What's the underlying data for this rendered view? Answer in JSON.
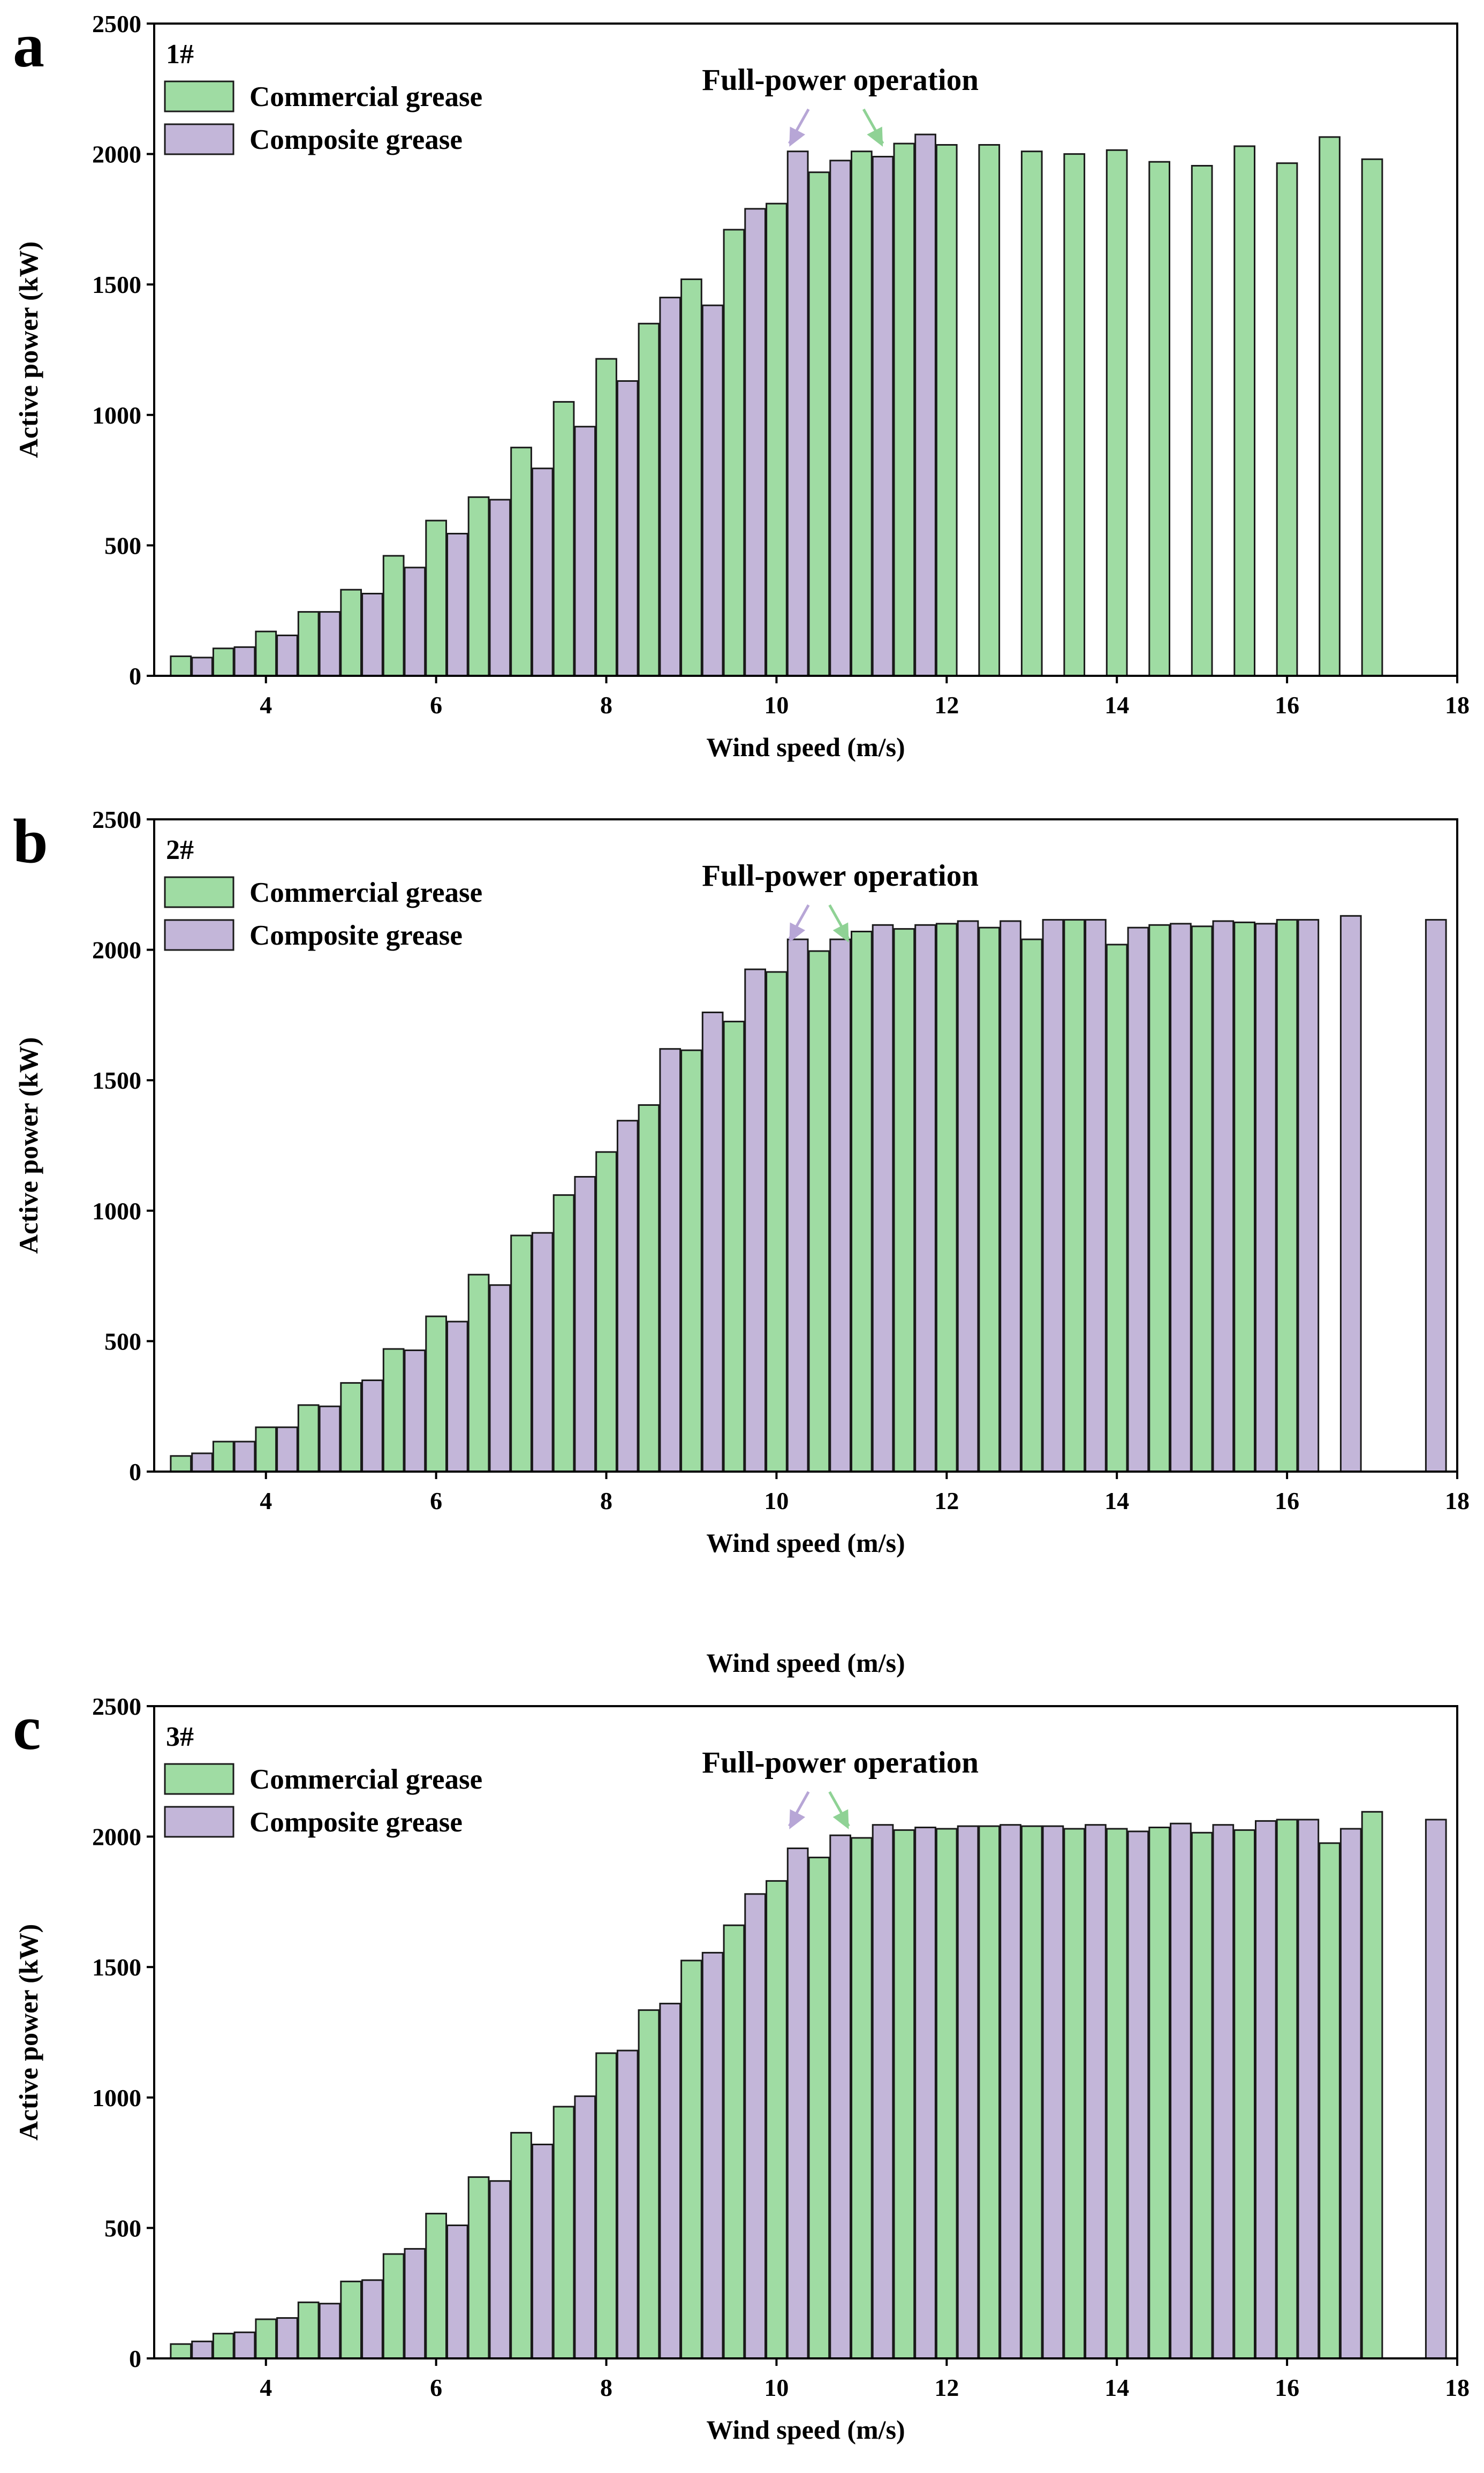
{
  "colors": {
    "commercial": "#9fdca3",
    "composite": "#c3b6d9",
    "arrow_commercial": "#8fd295",
    "arrow_composite": "#b7a6d6",
    "stroke": "#1a1a1a"
  },
  "stray_label": "Wind speed (m/s)",
  "chart_data": [
    {
      "type": "bar",
      "panel": "a",
      "turbine": "1#",
      "xlabel": "Wind speed (m/s)",
      "ylabel": "Active power (kW)",
      "xlim": [
        2.8,
        18
      ],
      "ylim": [
        0,
        2500
      ],
      "xticks": [
        4,
        6,
        8,
        10,
        12,
        14,
        16,
        18
      ],
      "yticks": [
        0,
        500,
        1000,
        1500,
        2000,
        2500
      ],
      "annotation": "Full-power operation",
      "arrows": {
        "commercial_x": 11.25,
        "composite_x": 10.15
      },
      "legend": [
        "Commercial grease",
        "Composite grease"
      ],
      "series": [
        {
          "name": "Commercial grease",
          "x": [
            3.0,
            3.5,
            4.0,
            4.5,
            5.0,
            5.5,
            6.0,
            6.5,
            7.0,
            7.5,
            8.0,
            8.5,
            9.0,
            9.5,
            10.0,
            10.5,
            11.0,
            11.5,
            12.0,
            12.5,
            13.0,
            13.5,
            14.0,
            14.5,
            15.0,
            15.5,
            16.0,
            16.5,
            17.0
          ],
          "values": [
            75,
            105,
            170,
            245,
            330,
            460,
            595,
            685,
            875,
            1050,
            1215,
            1350,
            1520,
            1710,
            1810,
            1930,
            2010,
            2040,
            2035,
            2035,
            2010,
            2000,
            2015,
            1970,
            1955,
            2030,
            1965,
            2065,
            1980
          ]
        },
        {
          "name": "Composite grease",
          "x": [
            3.25,
            3.75,
            4.25,
            4.75,
            5.25,
            5.75,
            6.25,
            6.75,
            7.25,
            7.75,
            8.25,
            8.75,
            9.25,
            9.75,
            10.25,
            10.75,
            11.25,
            11.75
          ],
          "values": [
            70,
            110,
            155,
            245,
            315,
            415,
            545,
            675,
            795,
            955,
            1130,
            1450,
            1420,
            1790,
            2010,
            1975,
            1990,
            2075
          ]
        }
      ]
    },
    {
      "type": "bar",
      "panel": "b",
      "turbine": "2#",
      "xlabel": "Wind speed (m/s)",
      "ylabel": "Active power (kW)",
      "xlim": [
        2.8,
        18
      ],
      "ylim": [
        0,
        2500
      ],
      "xticks": [
        4,
        6,
        8,
        10,
        12,
        14,
        16,
        18
      ],
      "yticks": [
        0,
        500,
        1000,
        1500,
        2000,
        2500
      ],
      "annotation": "Full-power operation",
      "arrows": {
        "commercial_x": 10.85,
        "composite_x": 10.15
      },
      "legend": [
        "Commercial grease",
        "Composite grease"
      ],
      "series": [
        {
          "name": "Commercial grease",
          "x": [
            3.0,
            3.5,
            4.0,
            4.5,
            5.0,
            5.5,
            6.0,
            6.5,
            7.0,
            7.5,
            8.0,
            8.5,
            9.0,
            9.5,
            10.0,
            10.5,
            11.0,
            11.5,
            12.0,
            12.5,
            13.0,
            13.5,
            14.0,
            14.5,
            15.0,
            15.5,
            16.0
          ],
          "values": [
            60,
            115,
            170,
            255,
            340,
            470,
            595,
            755,
            905,
            1060,
            1225,
            1405,
            1615,
            1725,
            1915,
            1995,
            2070,
            2080,
            2100,
            2085,
            2040,
            2115,
            2020,
            2095,
            2090,
            2105,
            2115
          ]
        },
        {
          "name": "Composite grease",
          "x": [
            3.25,
            3.75,
            4.25,
            4.75,
            5.25,
            5.75,
            6.25,
            6.75,
            7.25,
            7.75,
            8.25,
            8.75,
            9.25,
            9.75,
            10.25,
            10.75,
            11.25,
            11.75,
            12.25,
            12.75,
            13.25,
            13.75,
            14.25,
            14.75,
            15.25,
            15.75,
            16.25,
            16.75,
            17.75
          ],
          "values": [
            70,
            115,
            170,
            250,
            350,
            465,
            575,
            715,
            915,
            1130,
            1345,
            1620,
            1760,
            1925,
            2040,
            2040,
            2095,
            2095,
            2110,
            2110,
            2115,
            2115,
            2085,
            2100,
            2110,
            2100,
            2115,
            2130,
            2115
          ]
        }
      ]
    },
    {
      "type": "bar",
      "panel": "c",
      "turbine": "3#",
      "xlabel": "Wind speed (m/s)",
      "ylabel": "Active power (kW)",
      "xlim": [
        2.8,
        18
      ],
      "ylim": [
        0,
        2500
      ],
      "xticks": [
        4,
        6,
        8,
        10,
        12,
        14,
        16,
        18
      ],
      "yticks": [
        0,
        500,
        1000,
        1500,
        2000,
        2500
      ],
      "annotation": "Full-power operation",
      "arrows": {
        "commercial_x": 10.85,
        "composite_x": 10.15
      },
      "legend": [
        "Commercial grease",
        "Composite grease"
      ],
      "series": [
        {
          "name": "Commercial grease",
          "x": [
            3.0,
            3.5,
            4.0,
            4.5,
            5.0,
            5.5,
            6.0,
            6.5,
            7.0,
            7.5,
            8.0,
            8.5,
            9.0,
            9.5,
            10.0,
            10.5,
            11.0,
            11.5,
            12.0,
            12.5,
            13.0,
            13.5,
            14.0,
            14.5,
            15.0,
            15.5,
            16.0,
            16.5,
            17.0
          ],
          "values": [
            55,
            95,
            150,
            215,
            295,
            400,
            555,
            695,
            865,
            965,
            1170,
            1335,
            1525,
            1660,
            1830,
            1920,
            1995,
            2025,
            2030,
            2040,
            2040,
            2030,
            2030,
            2035,
            2015,
            2025,
            2065,
            1975,
            2095
          ]
        },
        {
          "name": "Composite grease",
          "x": [
            3.25,
            3.75,
            4.25,
            4.75,
            5.25,
            5.75,
            6.25,
            6.75,
            7.25,
            7.75,
            8.25,
            8.75,
            9.25,
            9.75,
            10.25,
            10.75,
            11.25,
            11.75,
            12.25,
            12.75,
            13.25,
            13.75,
            14.25,
            14.75,
            15.25,
            15.75,
            16.25,
            16.75,
            17.75
          ],
          "values": [
            65,
            100,
            155,
            210,
            300,
            420,
            510,
            680,
            820,
            1005,
            1180,
            1360,
            1555,
            1780,
            1955,
            2005,
            2045,
            2035,
            2040,
            2045,
            2040,
            2045,
            2020,
            2050,
            2045,
            2060,
            2065,
            2030,
            2065
          ]
        }
      ]
    }
  ]
}
